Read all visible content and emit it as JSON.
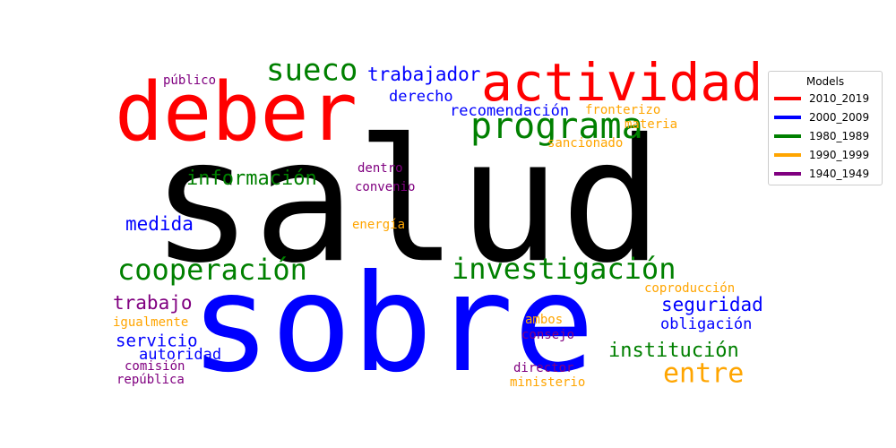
{
  "chart_data": {
    "type": "wordcloud",
    "legend": {
      "title": "Models",
      "placement": "top-right",
      "entries": [
        {
          "label": "2010_2019",
          "color": "#ff0000"
        },
        {
          "label": "2000_2009",
          "color": "#0000ff"
        },
        {
          "label": "1980_1989",
          "color": "#008000"
        },
        {
          "label": "1990_1999",
          "color": "#ffa500"
        },
        {
          "label": "1940_1949",
          "color": "#800080"
        }
      ]
    },
    "words": [
      {
        "text": "salud",
        "series": "—"
      },
      {
        "text": "sobre",
        "series": "2000_2009"
      },
      {
        "text": "deber",
        "series": "2010_2019"
      },
      {
        "text": "actividad",
        "series": "2010_2019"
      },
      {
        "text": "programa",
        "series": "1980_1989"
      },
      {
        "text": "sueco",
        "series": "1980_1989"
      },
      {
        "text": "trabajador",
        "series": "2000_2009"
      },
      {
        "text": "derecho",
        "series": "2000_2009"
      },
      {
        "text": "recomendación",
        "series": "2000_2009"
      },
      {
        "text": "fronterizo",
        "series": "1990_1999"
      },
      {
        "text": "materia",
        "series": "1990_1999"
      },
      {
        "text": "sancionado",
        "series": "1990_1999"
      },
      {
        "text": "público",
        "series": "1940_1949"
      },
      {
        "text": "información",
        "series": "1980_1989"
      },
      {
        "text": "dentro",
        "series": "1940_1949"
      },
      {
        "text": "convenio",
        "series": "1940_1949"
      },
      {
        "text": "medida",
        "series": "2000_2009"
      },
      {
        "text": "energía",
        "series": "1990_1999"
      },
      {
        "text": "cooperación",
        "series": "1980_1989"
      },
      {
        "text": "investigación",
        "series": "1980_1989"
      },
      {
        "text": "coproducción",
        "series": "1990_1999"
      },
      {
        "text": "trabajo",
        "series": "1940_1949"
      },
      {
        "text": "seguridad",
        "series": "2000_2009"
      },
      {
        "text": "obligación",
        "series": "2000_2009"
      },
      {
        "text": "igualmente",
        "series": "1990_1999"
      },
      {
        "text": "ambos",
        "series": "1990_1999"
      },
      {
        "text": "consejo",
        "series": "1940_1949"
      },
      {
        "text": "servicio",
        "series": "2000_2009"
      },
      {
        "text": "autoridad",
        "series": "2000_2009"
      },
      {
        "text": "institución",
        "series": "1980_1989"
      },
      {
        "text": "entre",
        "series": "1990_1999"
      },
      {
        "text": "comisión",
        "series": "1940_1949"
      },
      {
        "text": "director",
        "series": "1940_1949"
      },
      {
        "text": "república",
        "series": "1940_1949"
      },
      {
        "text": "ministerio",
        "series": "1990_1999"
      }
    ]
  }
}
